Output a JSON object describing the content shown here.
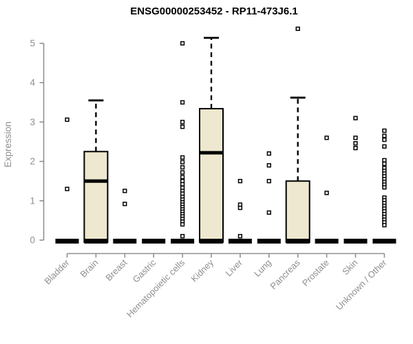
{
  "window": {
    "background": "#ffffff"
  },
  "chart_data": {
    "type": "boxplot",
    "title": "ENSG00000253452 - RP11-473J6.1",
    "ylabel": "Expression",
    "xlabel": "",
    "ylim": [
      0,
      5.5
    ],
    "yticks": [
      0,
      1,
      2,
      3,
      4,
      5
    ],
    "grid": false,
    "legend": "none",
    "categories": [
      "Bladder",
      "Brain",
      "Breast",
      "Gastric",
      "Hematopoietic cells",
      "Kidney",
      "Liver",
      "Lung",
      "Pancreas",
      "Prostate",
      "Skin",
      "Unknown / Other"
    ],
    "boxes": [
      {
        "category": "Bladder",
        "q1": 0,
        "median": 0,
        "q3": 0,
        "whisker_low": 0,
        "whisker_high": 0,
        "outliers": [
          3.06,
          1.3
        ]
      },
      {
        "category": "Brain",
        "q1": 0,
        "median": 1.5,
        "q3": 2.25,
        "whisker_low": 0,
        "whisker_high": 3.55,
        "outliers": []
      },
      {
        "category": "Breast",
        "q1": 0,
        "median": 0,
        "q3": 0,
        "whisker_low": 0,
        "whisker_high": 0,
        "outliers": [
          1.25,
          0.92
        ]
      },
      {
        "category": "Gastric",
        "q1": 0,
        "median": 0,
        "q3": 0,
        "whisker_low": 0,
        "whisker_high": 0,
        "outliers": []
      },
      {
        "category": "Hematopoietic cells",
        "q1": 0,
        "median": 0,
        "q3": 0,
        "whisker_low": 0,
        "whisker_high": 0,
        "outliers": [
          5.0,
          3.5,
          3.0,
          2.88,
          2.1,
          1.98,
          1.85,
          1.72,
          1.6,
          1.5,
          1.42,
          1.33,
          1.25,
          1.18,
          1.1,
          1.03,
          0.96,
          0.9,
          0.84,
          0.78,
          0.72,
          0.66,
          0.6,
          0.54,
          0.47,
          0.4,
          0.1
        ]
      },
      {
        "category": "Kidney",
        "q1": 0,
        "median": 2.22,
        "q3": 3.34,
        "whisker_low": 0,
        "whisker_high": 5.14,
        "outliers": []
      },
      {
        "category": "Liver",
        "q1": 0,
        "median": 0,
        "q3": 0,
        "whisker_low": 0,
        "whisker_high": 0,
        "outliers": [
          1.5,
          0.9,
          0.82,
          0.1
        ]
      },
      {
        "category": "Lung",
        "q1": 0,
        "median": 0,
        "q3": 0,
        "whisker_low": 0,
        "whisker_high": 0,
        "outliers": [
          2.2,
          1.9,
          1.5,
          0.7
        ]
      },
      {
        "category": "Pancreas",
        "q1": 0,
        "median": 0,
        "q3": 1.5,
        "whisker_low": 0,
        "whisker_high": 3.62,
        "outliers": [
          5.37
        ]
      },
      {
        "category": "Prostate",
        "q1": 0,
        "median": 0,
        "q3": 0,
        "whisker_low": 0,
        "whisker_high": 0,
        "outliers": [
          2.6,
          1.2
        ]
      },
      {
        "category": "Skin",
        "q1": 0,
        "median": 0,
        "q3": 0,
        "whisker_low": 0,
        "whisker_high": 0,
        "outliers": [
          3.1,
          2.6,
          2.46,
          2.34
        ]
      },
      {
        "category": "Unknown / Other",
        "q1": 0,
        "median": 0,
        "q3": 0,
        "whisker_low": 0,
        "whisker_high": 0,
        "outliers": [
          2.78,
          2.65,
          2.55,
          2.38,
          2.03,
          1.94,
          1.83,
          1.76,
          1.69,
          1.62,
          1.55,
          1.48,
          1.41,
          1.34,
          1.08,
          1.01,
          0.94,
          0.87,
          0.8,
          0.73,
          0.66,
          0.59,
          0.52,
          0.45,
          0.38
        ]
      }
    ],
    "style": {
      "box_fill": "#ede8cf",
      "box_border": "#000000",
      "median_color": "#000000",
      "whisker_color": "#000000",
      "whisker_style": "dashed",
      "outlier_shape": "open-square",
      "outlier_fill": "#ffffff",
      "axis_color": "#8f8f8f",
      "tick_label_color": "#8f8f8f",
      "title_color": "#000000"
    }
  }
}
